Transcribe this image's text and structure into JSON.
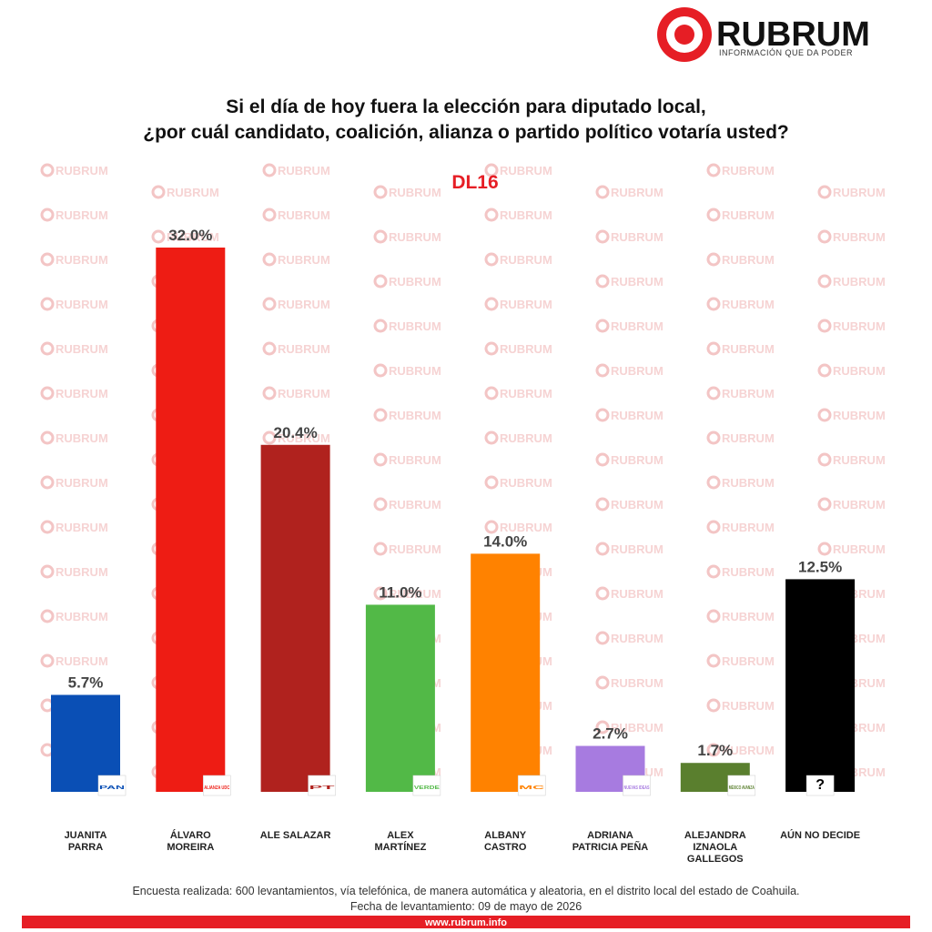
{
  "brand": {
    "name": "RUBRUM",
    "tagline": "INFORMACIÓN QUE DA PODER",
    "watermark": "RUBRUM",
    "website": "www.rubrum.info"
  },
  "chart_data": {
    "type": "bar",
    "title": [
      "Si el día de hoy fuera la elección para diputado local,",
      "¿por cuál candidato, coalición, alianza o partido político votaría usted?"
    ],
    "subtitle": "DL16",
    "categories": [
      "JUANITA PARRA",
      "ÁLVARO MOREIRA",
      "ALE SALAZAR",
      "ALEX MARTÍNEZ",
      "ALBANY CASTRO",
      "ADRIANA PATRICIA PEÑA",
      "ALEJANDRA IZNAOLA GALLEGOS",
      "AÚN NO DECIDE"
    ],
    "values": [
      5.7,
      32.0,
      20.4,
      11.0,
      14.0,
      2.7,
      1.7,
      12.5
    ],
    "value_labels": [
      "5.7%",
      "32.0%",
      "20.4%",
      "11.0%",
      "14.0%",
      "2.7%",
      "1.7%",
      "12.5%"
    ],
    "colors": [
      "#0a4fb5",
      "#ee1c14",
      "#b0221e",
      "#52b947",
      "#ff8200",
      "#a77be0",
      "#5a7f2e",
      "#000000"
    ],
    "party_logos": [
      "PAN",
      "ALIANZA UDC",
      "PT",
      "VERDE",
      "MC",
      "NUEVAS IDEAS",
      "MÉXICO AVANZA",
      "?"
    ]
  },
  "footer": [
    "Encuesta realizada: 600 levantamientos, vía telefónica, de manera automática y aleatoria, en el distrito local  del estado de Coahuila.",
    "Fecha de levantamiento: 09 de mayo de 2026"
  ]
}
